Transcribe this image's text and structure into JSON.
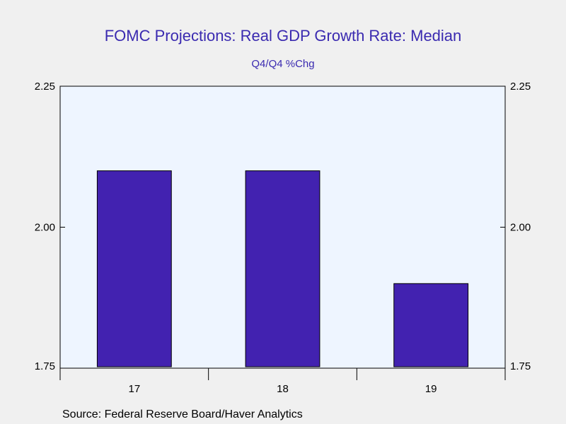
{
  "chart_data": {
    "type": "bar",
    "title": "FOMC Projections: Real GDP Growth Rate: Median",
    "subtitle": "Q4/Q4 %Chg",
    "categories": [
      "17",
      "18",
      "19"
    ],
    "values": [
      2.1,
      2.1,
      1.9
    ],
    "ylim": [
      1.75,
      2.25
    ],
    "yticks": [
      "2.25",
      "2.00",
      "1.75"
    ],
    "ytick_values": [
      2.25,
      2.0,
      1.75
    ],
    "grid": false,
    "colors": {
      "bar": "#4222b0",
      "plot_bg": "#eef5ff",
      "page_bg": "#f0f0f0",
      "title": "#3a2ab0"
    }
  },
  "source": "Source:  Federal Reserve Board/Haver Analytics"
}
